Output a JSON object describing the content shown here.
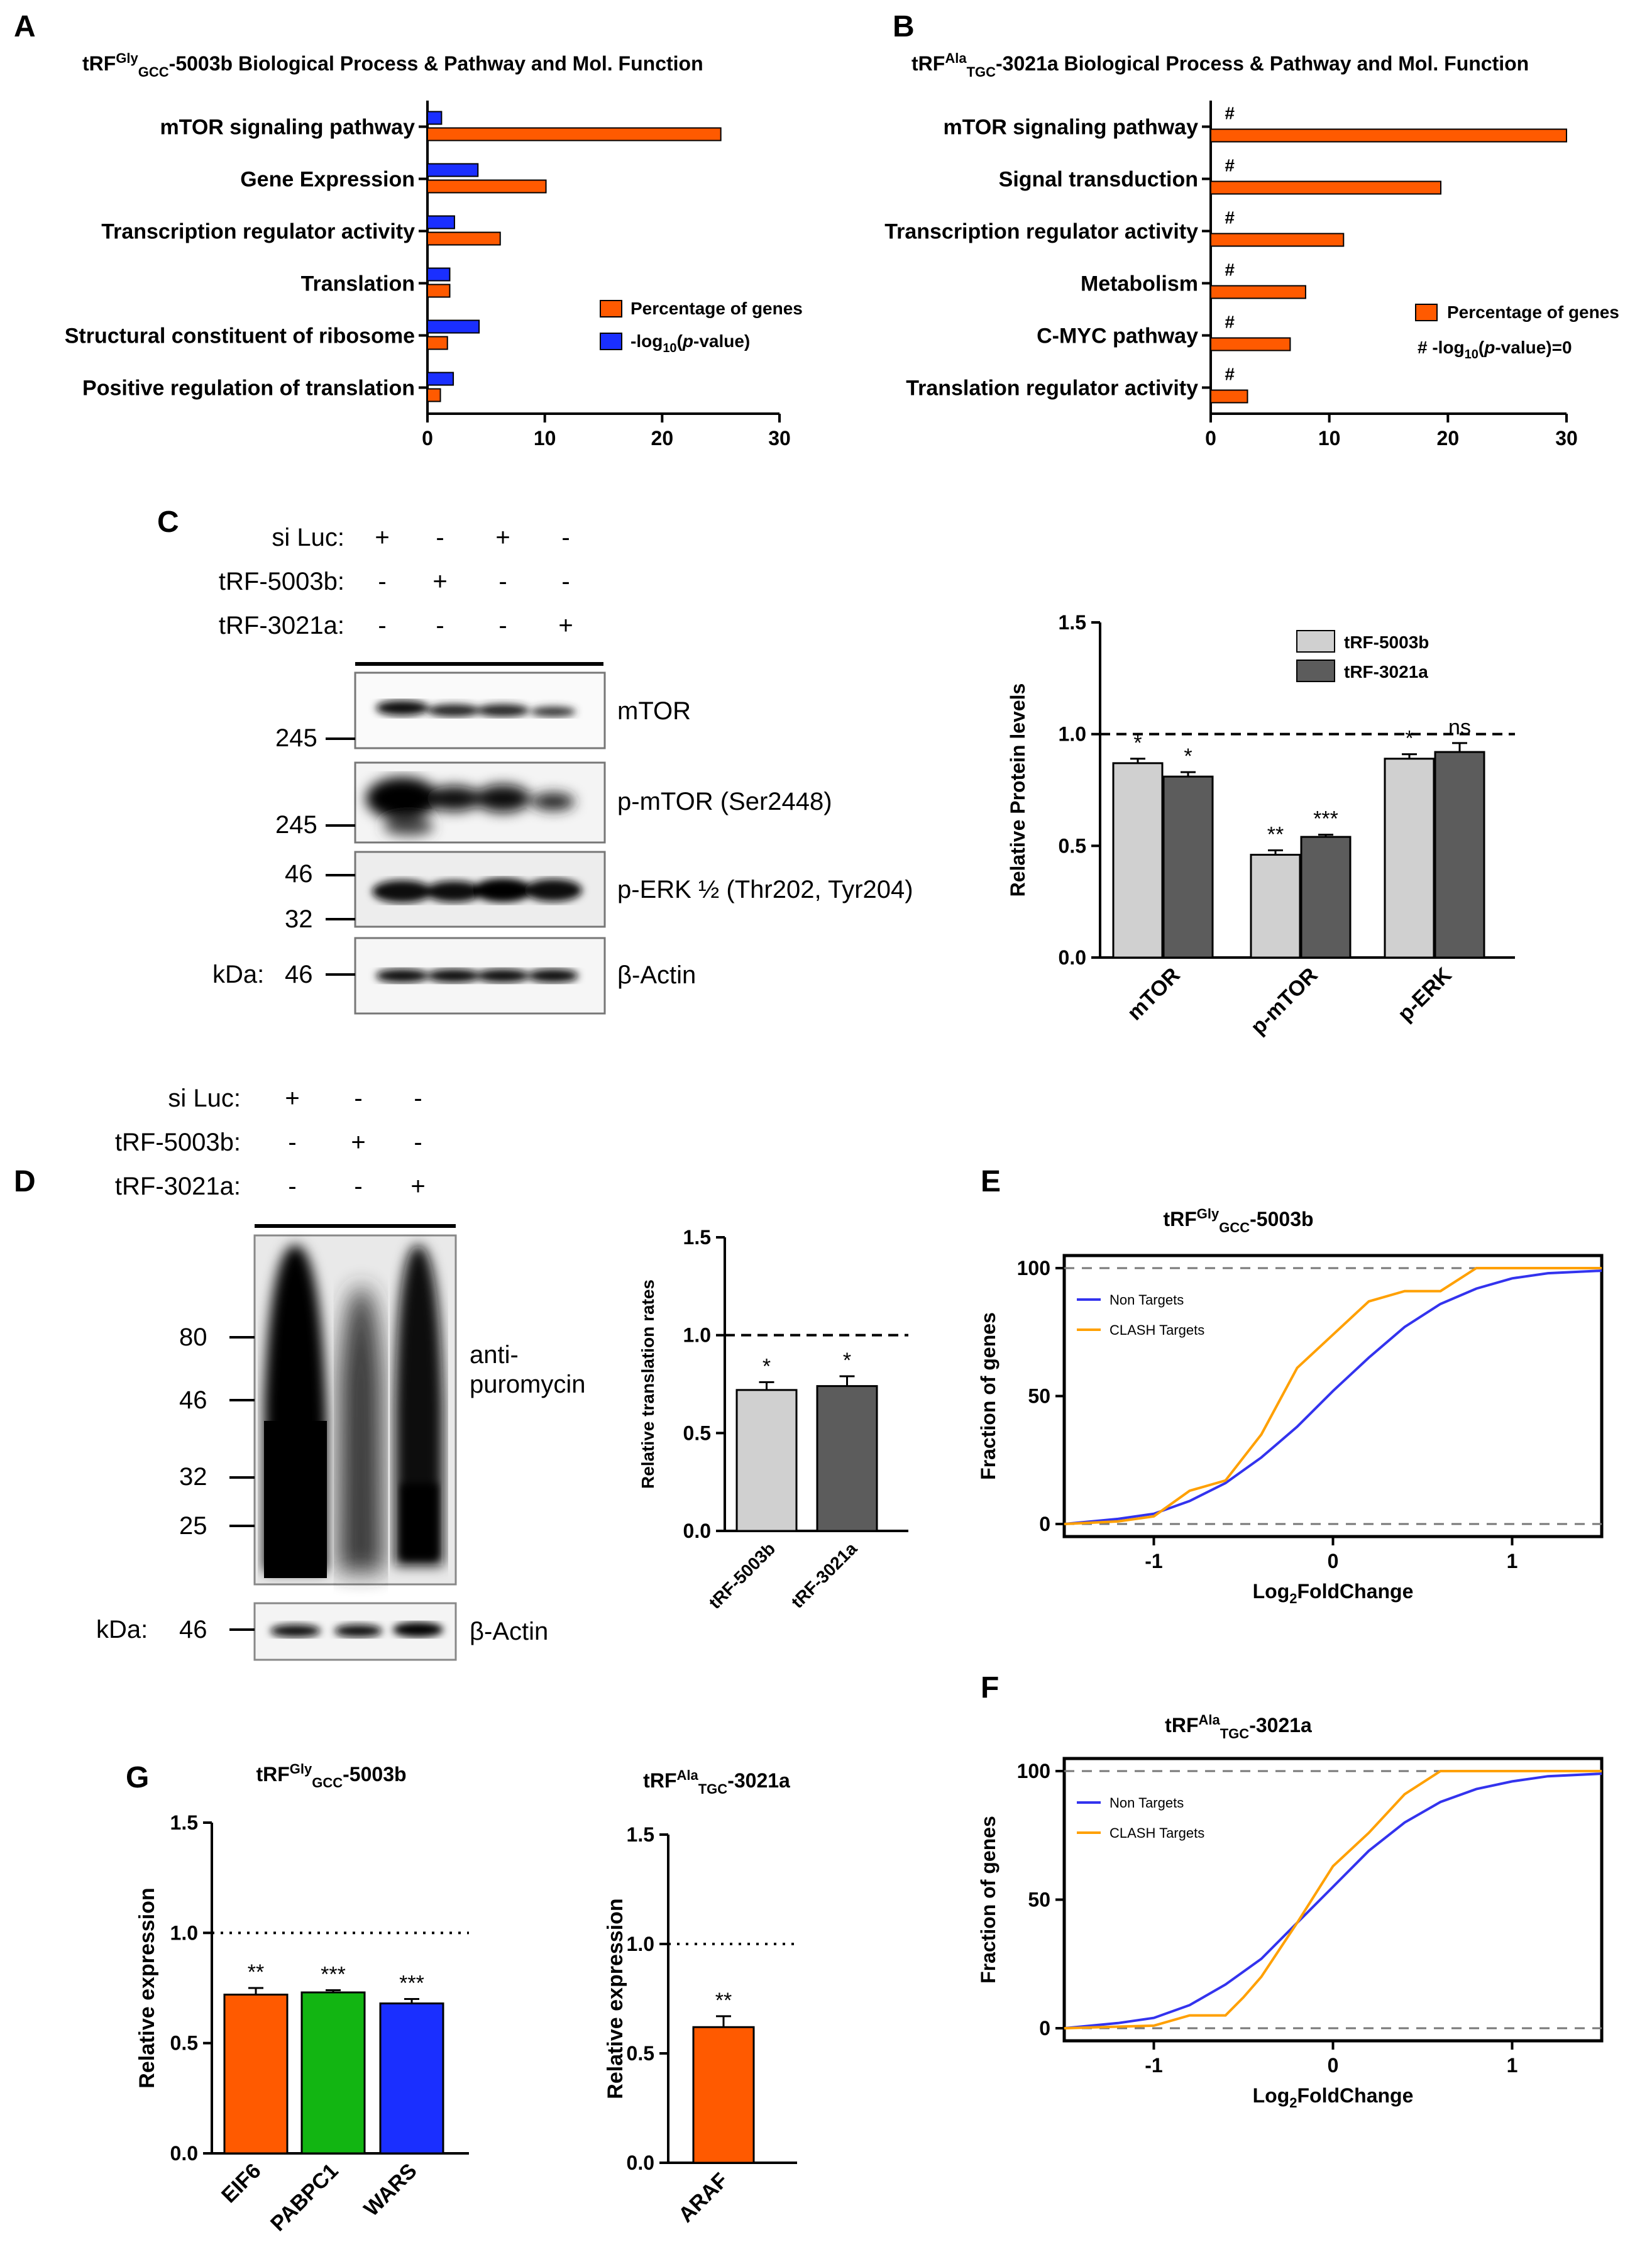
{
  "panels": {
    "A": "A",
    "B": "B",
    "C": "C",
    "D": "D",
    "E": "E",
    "F": "F",
    "G": "G"
  },
  "colors": {
    "orange": "#ff5a00",
    "blue": "#1a2fff",
    "light_grey": "#d0d0d0",
    "dark_grey": "#5c5c5c",
    "green": "#12b512",
    "curve_blue": "#3333ee",
    "curve_orange": "#ffa000"
  },
  "chart_data": [
    {
      "id": "A",
      "type": "bar",
      "orientation": "horizontal",
      "title_parts": [
        "tRF",
        "Gly",
        "GCC",
        "-5003b Biological Process & Pathway and Mol. Function"
      ],
      "categories": [
        "mTOR signaling pathway",
        "Gene Expression",
        "Transcription regulator activity",
        "Translation",
        "Structural constituent of ribosome",
        "Positive regulation of translation"
      ],
      "series": [
        {
          "name": "-log10(p-value)",
          "values": [
            1.2,
            4.3,
            2.3,
            1.9,
            4.4,
            2.2
          ]
        },
        {
          "name": "Percentage of genes",
          "values": [
            25.0,
            10.1,
            6.2,
            1.9,
            1.7,
            1.1
          ]
        }
      ],
      "legend": {
        "pct": "Percentage of genes",
        "logp_prefix": "-log",
        "logp_sub": "10",
        "logp_mid": "(",
        "logp_p": "p",
        "logp_suffix": "-value)"
      },
      "xlim": [
        0,
        30
      ],
      "xticks": [
        "0",
        "10",
        "20",
        "30"
      ]
    },
    {
      "id": "B",
      "type": "bar",
      "orientation": "horizontal",
      "title_parts": [
        "tRF",
        "Ala",
        "TGC",
        "-3021a Biological Process & Pathway and Mol. Function"
      ],
      "categories": [
        "mTOR signaling pathway",
        "Signal transduction",
        "Transcription regulator activity",
        "Metabolism",
        "C-MYC pathway",
        "Translation regulator activity"
      ],
      "series": [
        {
          "name": "Percentage of genes",
          "values": [
            30.0,
            19.4,
            11.2,
            8.0,
            6.7,
            3.1
          ]
        }
      ],
      "marker": "#",
      "legend": {
        "pct": "Percentage of genes",
        "hash_prefix": "#   -log",
        "hash_sub": "10",
        "hash_mid": "(",
        "hash_p": "p",
        "hash_suffix": "-value)=0"
      },
      "xlim": [
        0,
        30
      ],
      "xticks": [
        "0",
        "10",
        "20",
        "30"
      ]
    },
    {
      "id": "C-bar",
      "type": "bar",
      "categories": [
        "mTOR",
        "p-mTOR",
        "p-ERK"
      ],
      "series": [
        {
          "name": "tRF-5003b",
          "values": [
            0.87,
            0.46,
            0.89
          ],
          "errors": [
            0.02,
            0.02,
            0.02
          ],
          "sig": [
            "*",
            "**",
            "*"
          ]
        },
        {
          "name": "tRF-3021a",
          "values": [
            0.81,
            0.54,
            0.92
          ],
          "errors": [
            0.02,
            0.01,
            0.04
          ],
          "sig": [
            "*",
            "***",
            "ns"
          ]
        }
      ],
      "ylabel": "Relative Protein levels",
      "ylim": [
        0,
        1.5
      ],
      "yticks": [
        "0.0",
        "0.5",
        "1.0",
        "1.5"
      ],
      "reference_line": 1.0
    },
    {
      "id": "D-bar",
      "type": "bar",
      "categories": [
        "tRF-5003b",
        "tRF-3021a"
      ],
      "values": [
        0.72,
        0.74
      ],
      "errors": [
        0.04,
        0.05
      ],
      "sig": [
        "*",
        "*"
      ],
      "ylabel": "Relative translation rates",
      "ylim": [
        0,
        1.5
      ],
      "yticks": [
        "0.0",
        "0.5",
        "1.0",
        "1.5"
      ],
      "reference_line": 1.0
    },
    {
      "id": "E",
      "type": "line",
      "title_parts": [
        "tRF",
        "Gly",
        "GCC",
        "-5003b"
      ],
      "xlabel_parts": [
        "Log",
        "2",
        "FoldChange"
      ],
      "ylabel": "Fraction of genes",
      "xlim": [
        -1.5,
        1.5
      ],
      "ylim": [
        0,
        100
      ],
      "xticks": [
        "-1",
        "0",
        "1"
      ],
      "yticks": [
        "0",
        "50",
        "100"
      ],
      "series": [
        {
          "name": "Non Targets",
          "x": [
            -1.5,
            -1.2,
            -1.0,
            -0.8,
            -0.6,
            -0.4,
            -0.2,
            0.0,
            0.2,
            0.4,
            0.6,
            0.8,
            1.0,
            1.2,
            1.5
          ],
          "y": [
            0,
            2,
            4,
            9,
            16,
            26,
            38,
            52,
            65,
            77,
            86,
            92,
            96,
            98,
            99
          ]
        },
        {
          "name": "CLASH Targets",
          "x": [
            -1.5,
            -1.2,
            -1.0,
            -0.8,
            -0.6,
            -0.4,
            -0.2,
            0.0,
            0.2,
            0.4,
            0.6,
            0.8,
            1.0,
            1.5
          ],
          "y": [
            0,
            1,
            3,
            13,
            17,
            35,
            61,
            74,
            87,
            91,
            91,
            100,
            100,
            100
          ]
        }
      ]
    },
    {
      "id": "F",
      "type": "line",
      "title_parts": [
        "tRF",
        "Ala",
        "TGC",
        "-3021a"
      ],
      "xlabel_parts": [
        "Log",
        "2",
        "FoldChange"
      ],
      "ylabel": "Fraction of genes",
      "xlim": [
        -1.5,
        1.5
      ],
      "ylim": [
        0,
        100
      ],
      "xticks": [
        "-1",
        "0",
        "1"
      ],
      "yticks": [
        "0",
        "50",
        "100"
      ],
      "series": [
        {
          "name": "Non Targets",
          "x": [
            -1.5,
            -1.2,
            -1.0,
            -0.8,
            -0.6,
            -0.4,
            -0.2,
            0.0,
            0.2,
            0.4,
            0.6,
            0.8,
            1.0,
            1.2,
            1.5
          ],
          "y": [
            0,
            2,
            4,
            9,
            17,
            27,
            41,
            55,
            69,
            80,
            88,
            93,
            96,
            98,
            99
          ]
        },
        {
          "name": "CLASH Targets",
          "x": [
            -1.5,
            -1.0,
            -0.8,
            -0.6,
            -0.5,
            -0.4,
            -0.2,
            0.0,
            0.2,
            0.4,
            0.6,
            0.8,
            1.0,
            1.5
          ],
          "y": [
            0,
            1,
            5,
            5,
            12,
            20,
            41,
            63,
            76,
            91,
            100,
            100,
            100,
            100
          ]
        }
      ]
    },
    {
      "id": "G1",
      "type": "bar",
      "title_parts": [
        "tRF",
        "Gly",
        "GCC",
        "-5003b"
      ],
      "categories": [
        "EIF6",
        "PABPC1",
        "WARS"
      ],
      "values": [
        0.72,
        0.73,
        0.68
      ],
      "errors": [
        0.03,
        0.01,
        0.02
      ],
      "sig": [
        "**",
        "***",
        "***"
      ],
      "ylabel": "Relative expression",
      "ylim": [
        0,
        1.5
      ],
      "yticks": [
        "0.0",
        "0.5",
        "1.0",
        "1.5"
      ],
      "reference_line": 1.0
    },
    {
      "id": "G2",
      "type": "bar",
      "title_parts": [
        "tRF",
        "Ala",
        "TGC",
        "-3021a"
      ],
      "categories": [
        "ARAF"
      ],
      "values": [
        0.62
      ],
      "errors": [
        0.05
      ],
      "sig": [
        "**"
      ],
      "ylabel": "Relative expression",
      "ylim": [
        0,
        1.5
      ],
      "yticks": [
        "0.0",
        "0.5",
        "1.0",
        "1.5"
      ],
      "reference_line": 1.0
    }
  ],
  "blot_c": {
    "rows": [
      {
        "label": "si Luc:",
        "signs": [
          "+",
          "-",
          "+",
          "-"
        ]
      },
      {
        "label": "tRF-5003b:",
        "signs": [
          "-",
          "+",
          "-",
          "-"
        ]
      },
      {
        "label": "tRF-3021a:",
        "signs": [
          "-",
          "-",
          "-",
          "+"
        ]
      }
    ],
    "bands": [
      "mTOR",
      "p-mTOR (Ser2448)",
      "p-ERK ½ (Thr202, Tyr204)",
      "β-Actin"
    ],
    "markers": [
      "245",
      "245",
      "46",
      "32",
      "46"
    ],
    "kda": "kDa:"
  },
  "blot_d": {
    "rows": [
      {
        "label": "si Luc:",
        "signs": [
          "+",
          "-",
          "-"
        ]
      },
      {
        "label": "tRF-5003b:",
        "signs": [
          "-",
          "+",
          "-"
        ]
      },
      {
        "label": "tRF-3021a:",
        "signs": [
          "-",
          "-",
          "+"
        ]
      }
    ],
    "band_label": "anti-puromycin",
    "actin": "β-Actin",
    "markers": [
      "80",
      "46",
      "32",
      "25",
      "46"
    ],
    "kda": "kDa:"
  }
}
